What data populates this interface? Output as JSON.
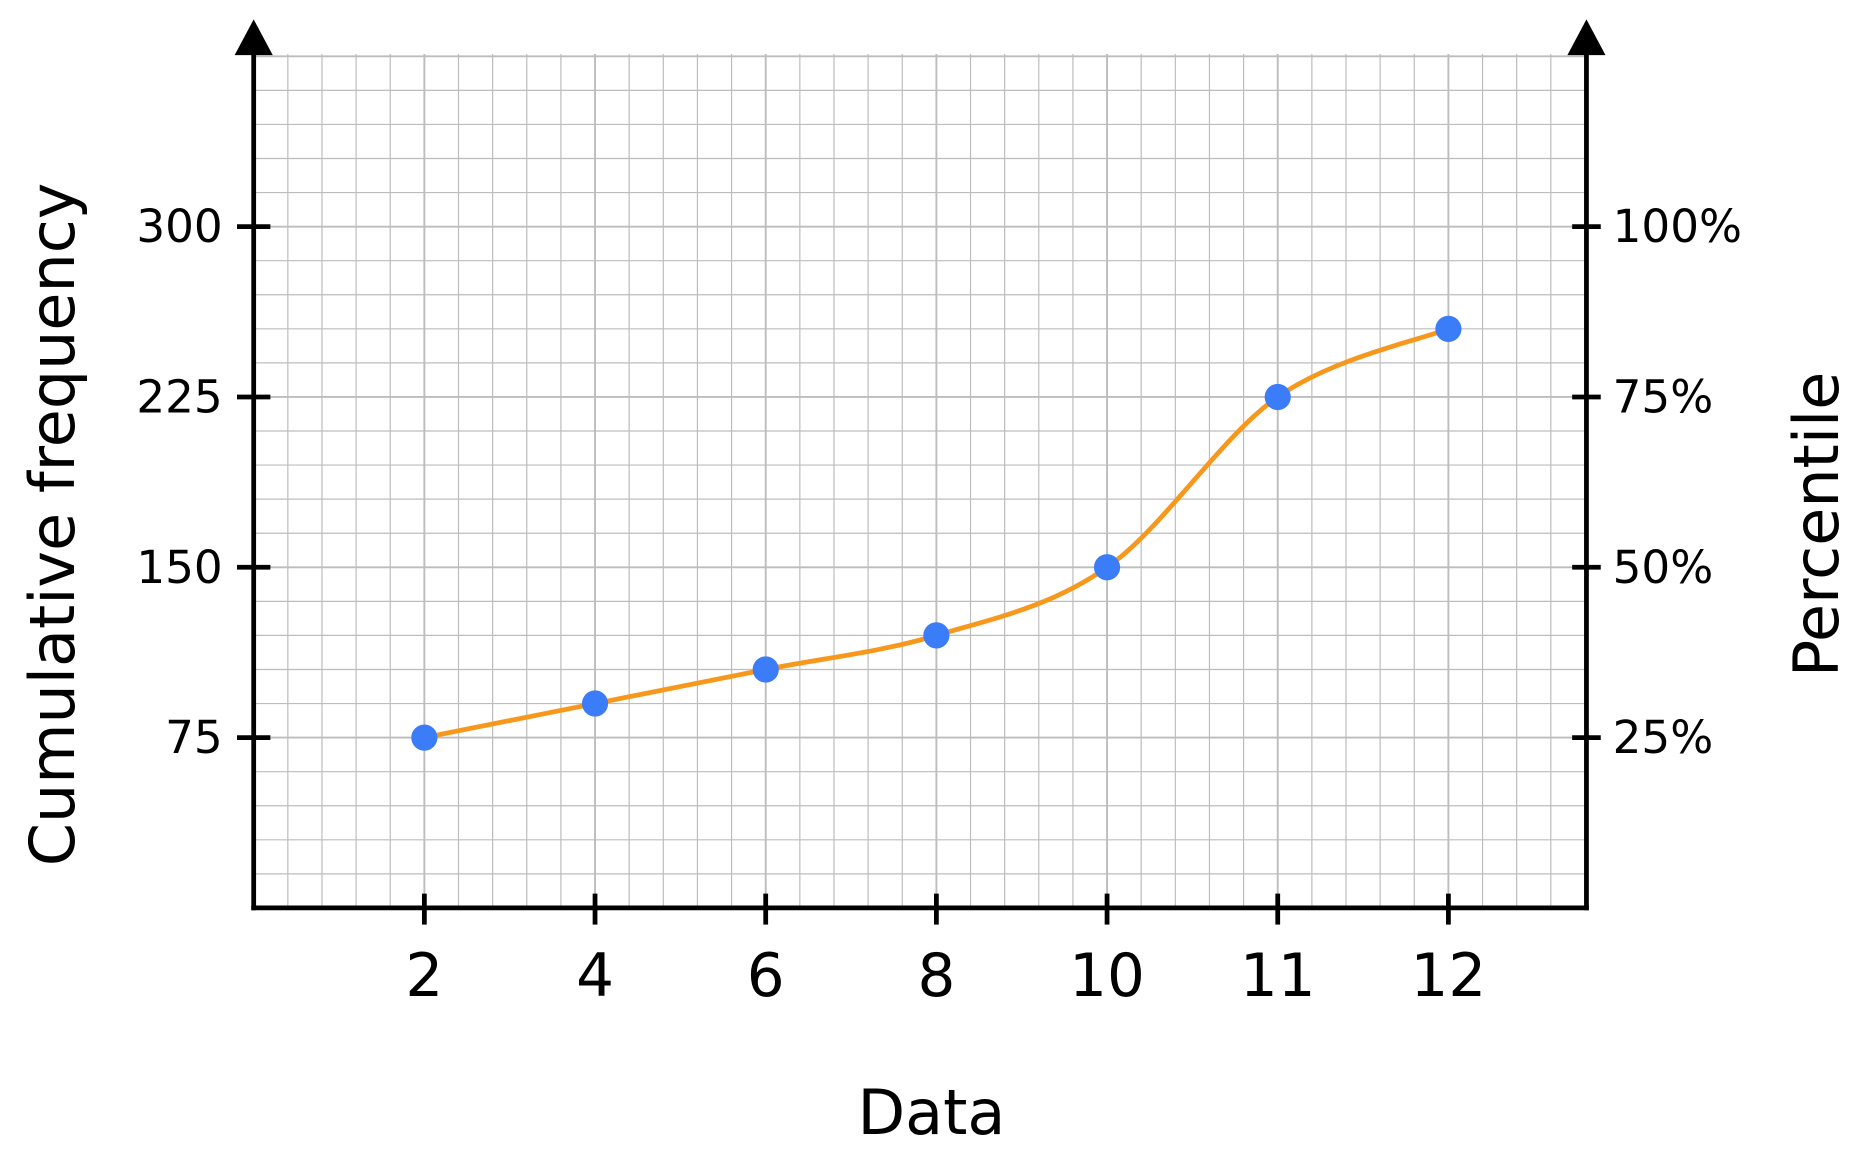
{
  "chart_data": {
    "type": "line",
    "title": "",
    "xlabel": "Data",
    "ylabel": "Cumulative frequency",
    "ylabel_right": "Percentile",
    "categories": [
      "2",
      "4",
      "6",
      "8",
      "10",
      "11",
      "12"
    ],
    "values": [
      75,
      90,
      105,
      120,
      150,
      225,
      255
    ],
    "yticks": [
      "75",
      "150",
      "225",
      "300"
    ],
    "ytick_values": [
      75,
      150,
      225,
      300
    ],
    "yticks_right": [
      "25%",
      "50%",
      "75%",
      "100%"
    ],
    "ylim": [
      0,
      375
    ],
    "grid": true,
    "grid_minor_step": 15,
    "smooth": true,
    "colors": {
      "line": "#F7981D",
      "points": "#3B7DF8",
      "grid": "#BDBDBD",
      "axis": "#000000"
    }
  }
}
